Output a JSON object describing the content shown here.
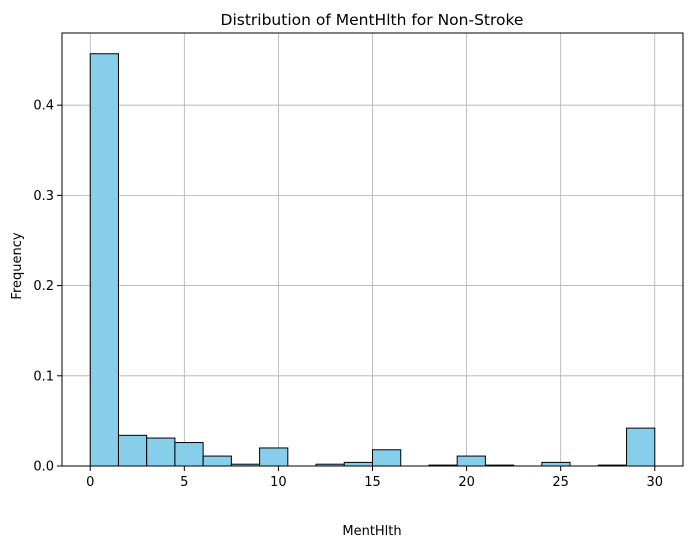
{
  "chart_data": {
    "type": "bar",
    "title": "Distribution of MentHlth for Non-Stroke",
    "xlabel": "MentHlth",
    "ylabel": "Frequency",
    "xlim": [
      -1.5,
      31.5
    ],
    "ylim": [
      0,
      0.48
    ],
    "xticks": [
      0,
      5,
      10,
      15,
      20,
      25,
      30
    ],
    "yticks": [
      0.0,
      0.1,
      0.2,
      0.3,
      0.4
    ],
    "ytick_labels": [
      "0.0",
      "0.1",
      "0.2",
      "0.3",
      "0.4"
    ],
    "grid": true,
    "bar_color": "#87ceeb",
    "edge_color": "#000000",
    "bin_edges": [
      0,
      1.5,
      3,
      4.5,
      6,
      7.5,
      9,
      10.5,
      12,
      13.5,
      15,
      16.5,
      18,
      19.5,
      21,
      22.5,
      24,
      25.5,
      27,
      28.5,
      30
    ],
    "values": [
      0.457,
      0.034,
      0.031,
      0.026,
      0.011,
      0.002,
      0.02,
      0.0,
      0.002,
      0.004,
      0.018,
      0.0,
      0.001,
      0.011,
      0.001,
      0.0,
      0.004,
      0.0,
      0.001,
      0.042
    ]
  }
}
